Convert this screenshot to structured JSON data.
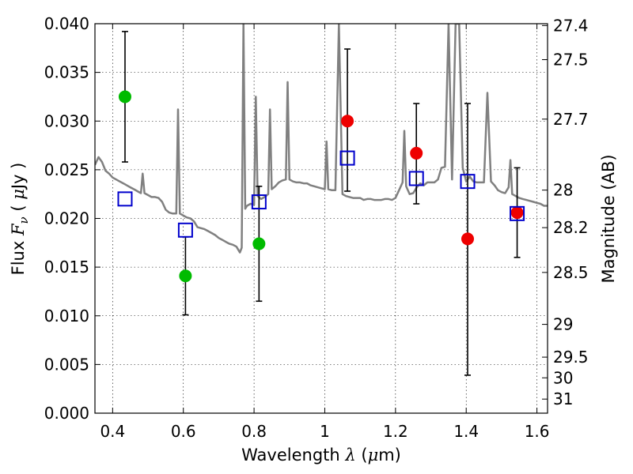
{
  "chart_data": {
    "type": "scatter",
    "xlabel": {
      "prefix": "Wavelength  ",
      "symbol": "λ",
      "unit_open": " (",
      "unit_mu": "μ",
      "unit_rest": "m)"
    },
    "ylabel": {
      "prefix": "Flux  ",
      "symbol": "F",
      "subscript": "ν",
      "unit_open": "  ( ",
      "unit_mu": "μ",
      "unit_rest": "Jy )"
    },
    "ylabel_right": "Magnitude (AB)",
    "xlim": [
      0.35,
      1.63
    ],
    "ylim": [
      0.0,
      0.04
    ],
    "x_ticks": [
      {
        "value": 0.4,
        "label": "0.4"
      },
      {
        "value": 0.6,
        "label": "0.6"
      },
      {
        "value": 0.8,
        "label": "0.8"
      },
      {
        "value": 1.0,
        "label": "1"
      },
      {
        "value": 1.2,
        "label": "1.2"
      },
      {
        "value": 1.4,
        "label": "1.4"
      },
      {
        "value": 1.6,
        "label": "1.6"
      }
    ],
    "y_ticks": [
      {
        "value": 0.0,
        "label": "0.000"
      },
      {
        "value": 0.005,
        "label": "0.005"
      },
      {
        "value": 0.01,
        "label": "0.010"
      },
      {
        "value": 0.015,
        "label": "0.015"
      },
      {
        "value": 0.02,
        "label": "0.020"
      },
      {
        "value": 0.025,
        "label": "0.025"
      },
      {
        "value": 0.03,
        "label": "0.030"
      },
      {
        "value": 0.035,
        "label": "0.035"
      },
      {
        "value": 0.04,
        "label": "0.040"
      }
    ],
    "y2_ticks": [
      {
        "mag": 27.4,
        "label": "27.4"
      },
      {
        "mag": 27.5,
        "label": "27.5"
      },
      {
        "mag": 27.7,
        "label": "27.7"
      },
      {
        "mag": 28.0,
        "label": "28"
      },
      {
        "mag": 28.2,
        "label": "28.2"
      },
      {
        "mag": 28.5,
        "label": "28.5"
      },
      {
        "mag": 29.0,
        "label": "29"
      },
      {
        "mag": 29.5,
        "label": "29.5"
      },
      {
        "mag": 30.0,
        "label": "30"
      },
      {
        "mag": 31.0,
        "label": "31"
      }
    ],
    "grid": true,
    "series": [
      {
        "kind": "line",
        "color": "#808080",
        "points": [
          [
            0.35,
            0.0255
          ],
          [
            0.36,
            0.0263
          ],
          [
            0.37,
            0.0258
          ],
          [
            0.38,
            0.0249
          ],
          [
            0.39,
            0.0246
          ],
          [
            0.4,
            0.0242
          ],
          [
            0.41,
            0.024
          ],
          [
            0.42,
            0.0238
          ],
          [
            0.43,
            0.0236
          ],
          [
            0.44,
            0.0234
          ],
          [
            0.45,
            0.0232
          ],
          [
            0.46,
            0.023
          ],
          [
            0.47,
            0.0228
          ],
          [
            0.48,
            0.0226
          ],
          [
            0.485,
            0.0246
          ],
          [
            0.49,
            0.0226
          ],
          [
            0.5,
            0.0224
          ],
          [
            0.51,
            0.0222
          ],
          [
            0.52,
            0.0222
          ],
          [
            0.53,
            0.0221
          ],
          [
            0.54,
            0.0217
          ],
          [
            0.55,
            0.0209
          ],
          [
            0.56,
            0.0206
          ],
          [
            0.57,
            0.0205
          ],
          [
            0.58,
            0.0205
          ],
          [
            0.585,
            0.0312
          ],
          [
            0.59,
            0.0205
          ],
          [
            0.6,
            0.0203
          ],
          [
            0.61,
            0.0201
          ],
          [
            0.62,
            0.02
          ],
          [
            0.63,
            0.0197
          ],
          [
            0.64,
            0.0191
          ],
          [
            0.65,
            0.019
          ],
          [
            0.66,
            0.0189
          ],
          [
            0.67,
            0.0187
          ],
          [
            0.68,
            0.0185
          ],
          [
            0.69,
            0.0183
          ],
          [
            0.7,
            0.018
          ],
          [
            0.71,
            0.0178
          ],
          [
            0.72,
            0.0176
          ],
          [
            0.73,
            0.0174
          ],
          [
            0.74,
            0.0173
          ],
          [
            0.75,
            0.0171
          ],
          [
            0.76,
            0.0165
          ],
          [
            0.765,
            0.017
          ],
          [
            0.77,
            0.04
          ],
          [
            0.775,
            0.021
          ],
          [
            0.78,
            0.0213
          ],
          [
            0.79,
            0.0215
          ],
          [
            0.8,
            0.0214
          ],
          [
            0.805,
            0.0325
          ],
          [
            0.81,
            0.0223
          ],
          [
            0.82,
            0.022
          ],
          [
            0.83,
            0.0222
          ],
          [
            0.84,
            0.0225
          ],
          [
            0.845,
            0.0312
          ],
          [
            0.85,
            0.023
          ],
          [
            0.86,
            0.0233
          ],
          [
            0.87,
            0.0237
          ],
          [
            0.88,
            0.0239
          ],
          [
            0.89,
            0.024
          ],
          [
            0.895,
            0.034
          ],
          [
            0.9,
            0.024
          ],
          [
            0.91,
            0.0238
          ],
          [
            0.92,
            0.0237
          ],
          [
            0.93,
            0.0237
          ],
          [
            0.94,
            0.0236
          ],
          [
            0.95,
            0.0236
          ],
          [
            0.96,
            0.0234
          ],
          [
            0.97,
            0.0233
          ],
          [
            0.98,
            0.0232
          ],
          [
            0.99,
            0.0231
          ],
          [
            1.0,
            0.023
          ],
          [
            1.005,
            0.0279
          ],
          [
            1.01,
            0.023
          ],
          [
            1.02,
            0.0229
          ],
          [
            1.03,
            0.0229
          ],
          [
            1.04,
            0.04
          ],
          [
            1.05,
            0.0225
          ],
          [
            1.06,
            0.0223
          ],
          [
            1.07,
            0.0222
          ],
          [
            1.08,
            0.0221
          ],
          [
            1.09,
            0.0221
          ],
          [
            1.1,
            0.0221
          ],
          [
            1.11,
            0.0219
          ],
          [
            1.12,
            0.022
          ],
          [
            1.13,
            0.022
          ],
          [
            1.14,
            0.0219
          ],
          [
            1.15,
            0.0219
          ],
          [
            1.16,
            0.0219
          ],
          [
            1.17,
            0.022
          ],
          [
            1.18,
            0.022
          ],
          [
            1.19,
            0.0219
          ],
          [
            1.2,
            0.0221
          ],
          [
            1.21,
            0.0229
          ],
          [
            1.22,
            0.0237
          ],
          [
            1.225,
            0.029
          ],
          [
            1.23,
            0.0233
          ],
          [
            1.24,
            0.0225
          ],
          [
            1.25,
            0.0226
          ],
          [
            1.26,
            0.0232
          ],
          [
            1.27,
            0.0236
          ],
          [
            1.28,
            0.0234
          ],
          [
            1.29,
            0.0237
          ],
          [
            1.3,
            0.0237
          ],
          [
            1.31,
            0.0237
          ],
          [
            1.32,
            0.024
          ],
          [
            1.33,
            0.0252
          ],
          [
            1.34,
            0.0253
          ],
          [
            1.35,
            0.04
          ],
          [
            1.36,
            0.024
          ],
          [
            1.37,
            0.04
          ],
          [
            1.38,
            0.04
          ],
          [
            1.39,
            0.0252
          ],
          [
            1.4,
            0.0238
          ],
          [
            1.41,
            0.0243
          ],
          [
            1.42,
            0.0238
          ],
          [
            1.43,
            0.0237
          ],
          [
            1.44,
            0.0237
          ],
          [
            1.45,
            0.0237
          ],
          [
            1.46,
            0.0329
          ],
          [
            1.47,
            0.0238
          ],
          [
            1.48,
            0.0234
          ],
          [
            1.49,
            0.0229
          ],
          [
            1.5,
            0.0227
          ],
          [
            1.51,
            0.0226
          ],
          [
            1.52,
            0.0232
          ],
          [
            1.525,
            0.026
          ],
          [
            1.53,
            0.0225
          ],
          [
            1.54,
            0.0223
          ],
          [
            1.55,
            0.0221
          ],
          [
            1.56,
            0.022
          ],
          [
            1.57,
            0.0219
          ],
          [
            1.58,
            0.0218
          ],
          [
            1.59,
            0.0217
          ],
          [
            1.6,
            0.0216
          ],
          [
            1.61,
            0.0215
          ],
          [
            1.62,
            0.0213
          ],
          [
            1.63,
            0.0213
          ]
        ]
      },
      {
        "kind": "error_points",
        "color": "#00bb00",
        "points": [
          {
            "x": 0.435,
            "y": 0.0325,
            "ylo": 0.0258,
            "yhi": 0.0392
          },
          {
            "x": 0.606,
            "y": 0.0141,
            "ylo": 0.0101,
            "yhi": 0.0181
          },
          {
            "x": 0.814,
            "y": 0.0174,
            "ylo": 0.0115,
            "yhi": 0.0233
          }
        ]
      },
      {
        "kind": "error_points",
        "color": "#ee0000",
        "points": [
          {
            "x": 1.064,
            "y": 0.03,
            "ylo": 0.0228,
            "yhi": 0.0374
          },
          {
            "x": 1.259,
            "y": 0.0267,
            "ylo": 0.0215,
            "yhi": 0.0318
          },
          {
            "x": 1.404,
            "y": 0.0179,
            "ylo": 0.0039,
            "yhi": 0.0318
          },
          {
            "x": 1.544,
            "y": 0.0206,
            "ylo": 0.016,
            "yhi": 0.0252
          }
        ]
      },
      {
        "kind": "squares",
        "color": "#0000cc",
        "points": [
          {
            "x": 0.435,
            "y": 0.022
          },
          {
            "x": 0.606,
            "y": 0.0188
          },
          {
            "x": 0.814,
            "y": 0.0217
          },
          {
            "x": 1.064,
            "y": 0.0262
          },
          {
            "x": 1.259,
            "y": 0.0241
          },
          {
            "x": 1.404,
            "y": 0.0238
          },
          {
            "x": 1.544,
            "y": 0.0205
          }
        ]
      }
    ]
  }
}
